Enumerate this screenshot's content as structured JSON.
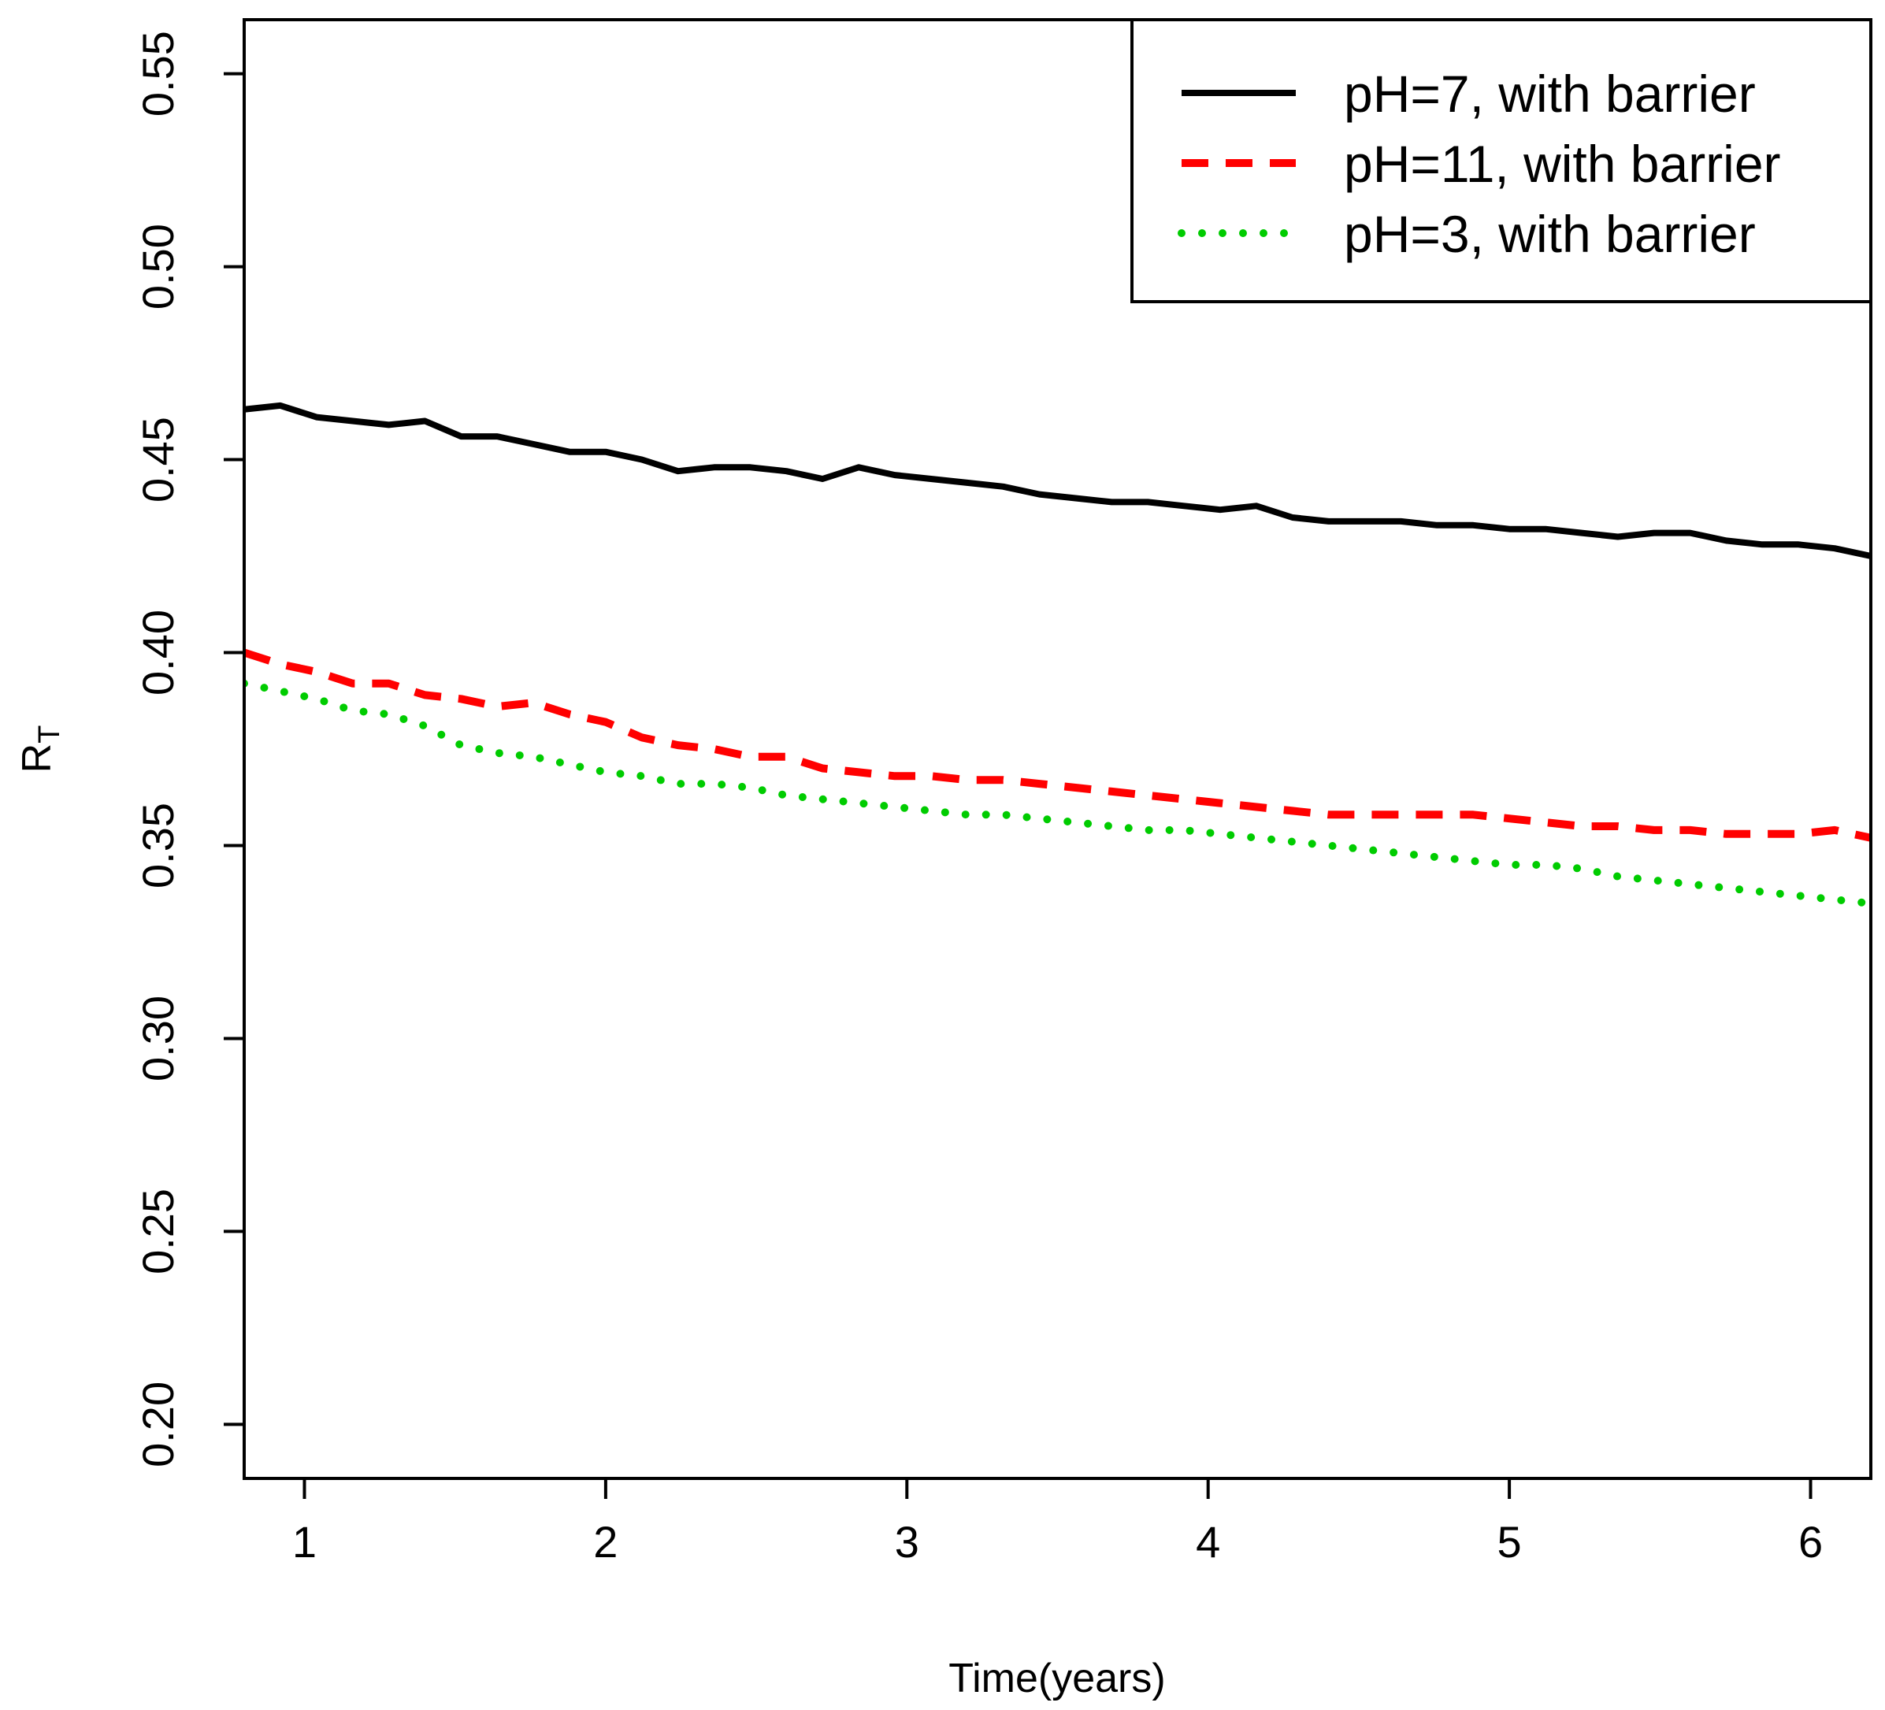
{
  "chart_data": {
    "type": "line",
    "title": "",
    "xlabel": "Time(years)",
    "ylabel": "R",
    "ylabel_subscript": "T",
    "xlim": [
      0.8,
      6.2
    ],
    "ylim": [
      0.186,
      0.564
    ],
    "xticks": [
      1,
      2,
      3,
      4,
      5,
      6
    ],
    "xtick_labels": [
      "1",
      "2",
      "3",
      "4",
      "5",
      "6"
    ],
    "yticks": [
      0.2,
      0.25,
      0.3,
      0.35,
      0.4,
      0.45,
      0.5,
      0.55
    ],
    "ytick_labels": [
      "0.20",
      "0.25",
      "0.30",
      "0.35",
      "0.40",
      "0.45",
      "0.50",
      "0.55"
    ],
    "grid": false,
    "legend_position": "top-right",
    "series": [
      {
        "name": "pH=7, with barrier",
        "color": "#000000",
        "style": "solid",
        "x": [
          0.8,
          0.92,
          1.04,
          1.16,
          1.28,
          1.4,
          1.52,
          1.64,
          1.76,
          1.88,
          2.0,
          2.12,
          2.24,
          2.36,
          2.48,
          2.6,
          2.72,
          2.84,
          2.96,
          3.08,
          3.2,
          3.32,
          3.44,
          3.56,
          3.68,
          3.8,
          3.92,
          4.04,
          4.16,
          4.28,
          4.4,
          4.52,
          4.64,
          4.76,
          4.88,
          5.0,
          5.12,
          5.24,
          5.36,
          5.48,
          5.6,
          5.72,
          5.84,
          5.96,
          6.08,
          6.2
        ],
        "y": [
          0.463,
          0.464,
          0.461,
          0.46,
          0.459,
          0.46,
          0.456,
          0.456,
          0.454,
          0.452,
          0.452,
          0.45,
          0.447,
          0.448,
          0.448,
          0.447,
          0.445,
          0.448,
          0.446,
          0.445,
          0.444,
          0.443,
          0.441,
          0.44,
          0.439,
          0.439,
          0.438,
          0.437,
          0.438,
          0.435,
          0.434,
          0.434,
          0.434,
          0.433,
          0.433,
          0.432,
          0.432,
          0.431,
          0.43,
          0.431,
          0.431,
          0.429,
          0.428,
          0.428,
          0.427,
          0.425
        ]
      },
      {
        "name": "pH=11, with barrier",
        "color": "#ff0000",
        "style": "dashed",
        "x": [
          0.8,
          0.92,
          1.04,
          1.16,
          1.28,
          1.4,
          1.52,
          1.64,
          1.76,
          1.88,
          2.0,
          2.12,
          2.24,
          2.36,
          2.48,
          2.6,
          2.72,
          2.84,
          2.96,
          3.08,
          3.2,
          3.32,
          3.44,
          3.56,
          3.68,
          3.8,
          3.92,
          4.04,
          4.16,
          4.28,
          4.4,
          4.52,
          4.64,
          4.76,
          4.88,
          5.0,
          5.12,
          5.24,
          5.36,
          5.48,
          5.6,
          5.72,
          5.84,
          5.96,
          6.08,
          6.2
        ],
        "y": [
          0.4,
          0.397,
          0.395,
          0.392,
          0.392,
          0.389,
          0.388,
          0.386,
          0.387,
          0.384,
          0.382,
          0.378,
          0.376,
          0.375,
          0.373,
          0.373,
          0.37,
          0.369,
          0.368,
          0.368,
          0.367,
          0.367,
          0.366,
          0.365,
          0.364,
          0.363,
          0.362,
          0.361,
          0.36,
          0.359,
          0.358,
          0.358,
          0.358,
          0.358,
          0.358,
          0.357,
          0.356,
          0.355,
          0.355,
          0.354,
          0.354,
          0.353,
          0.353,
          0.353,
          0.354,
          0.352
        ]
      },
      {
        "name": "pH=3, with barrier",
        "color": "#00cc00",
        "style": "dotted",
        "x": [
          0.8,
          0.92,
          1.04,
          1.16,
          1.28,
          1.4,
          1.52,
          1.64,
          1.76,
          1.88,
          2.0,
          2.12,
          2.24,
          2.36,
          2.48,
          2.6,
          2.72,
          2.84,
          2.96,
          3.08,
          3.2,
          3.32,
          3.44,
          3.56,
          3.68,
          3.8,
          3.92,
          4.04,
          4.16,
          4.28,
          4.4,
          4.52,
          4.64,
          4.76,
          4.88,
          5.0,
          5.12,
          5.24,
          5.36,
          5.48,
          5.6,
          5.72,
          5.84,
          5.96,
          6.08,
          6.2
        ],
        "y": [
          0.392,
          0.39,
          0.388,
          0.385,
          0.384,
          0.381,
          0.376,
          0.374,
          0.373,
          0.371,
          0.369,
          0.368,
          0.366,
          0.366,
          0.365,
          0.363,
          0.362,
          0.361,
          0.36,
          0.359,
          0.358,
          0.358,
          0.357,
          0.356,
          0.355,
          0.354,
          0.354,
          0.353,
          0.352,
          0.351,
          0.35,
          0.349,
          0.348,
          0.347,
          0.346,
          0.345,
          0.345,
          0.344,
          0.342,
          0.341,
          0.34,
          0.339,
          0.338,
          0.337,
          0.336,
          0.335
        ]
      }
    ]
  }
}
